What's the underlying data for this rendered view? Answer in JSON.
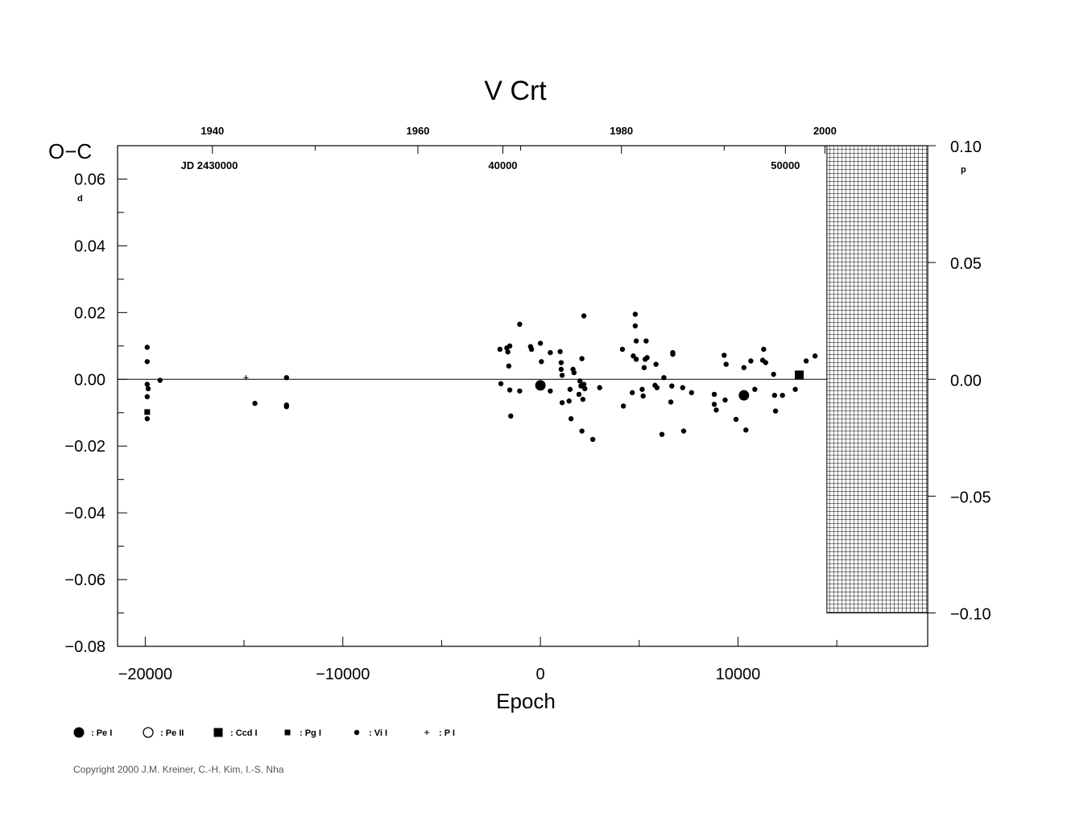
{
  "chart_data": {
    "type": "scatter",
    "title": "V  Crt",
    "ylabel": "O−C",
    "xlabel": "Epoch",
    "y_unit": "d",
    "y2_unit": "p",
    "xlim": [
      -21400,
      19600
    ],
    "ylim": [
      -0.08,
      0.07
    ],
    "x_ticks": [
      -20000,
      -10000,
      0,
      10000
    ],
    "x_tick_labels": [
      "−20000",
      "−10000",
      "0",
      "10000"
    ],
    "y_ticks": [
      0.06,
      0.04,
      0.02,
      0.0,
      -0.02,
      -0.04,
      -0.06,
      -0.08
    ],
    "y_tick_labels": [
      "0.06",
      "0.04",
      "0.02",
      "0.00",
      "−0.02",
      "−0.04",
      "−0.06",
      "−0.08"
    ],
    "y2_ticks": [
      0.1,
      0.05,
      0.0,
      -0.05,
      -0.1
    ],
    "y2_tick_labels": [
      "0.10",
      "0.05",
      "0.00",
      "−0.05",
      "−0.10"
    ],
    "top_year_labels": [
      "1940",
      "1960",
      "1980",
      "2000"
    ],
    "top_year_positions": [
      -16600,
      -6200,
      4100,
      14400
    ],
    "jd_labels": [
      "JD  2430000",
      "40000",
      "50000"
    ],
    "jd_positions": [
      -18200,
      -1900,
      12400
    ],
    "legend": [
      {
        "symbol": "big-dot",
        "label": ": Pe  I"
      },
      {
        "symbol": "open-circle",
        "label": ": Pe  II"
      },
      {
        "symbol": "big-square",
        "label": ": Ccd  I"
      },
      {
        "symbol": "small-square",
        "label": ": Pg  I"
      },
      {
        "symbol": "small-dot",
        "label": ": Vi  I"
      },
      {
        "symbol": "plus",
        "label": ": P  I"
      }
    ],
    "series": [
      {
        "name": "Pe I",
        "marker": "big-dot",
        "points": [
          [
            0,
            -0.0018
          ],
          [
            10300,
            -0.0048
          ]
        ]
      },
      {
        "name": "Ccd I",
        "marker": "big-square",
        "points": [
          [
            13100,
            0.0013
          ]
        ]
      },
      {
        "name": "Pg I",
        "marker": "small-square",
        "points": [
          [
            -19900,
            -0.0098
          ]
        ]
      },
      {
        "name": "P I",
        "marker": "plus",
        "points": [
          [
            -14900,
            0.0005
          ]
        ]
      },
      {
        "name": "Vi I",
        "marker": "small-dot",
        "points": [
          [
            -19900,
            0.0096
          ],
          [
            -19900,
            0.0053
          ],
          [
            -19900,
            -0.0015
          ],
          [
            -19850,
            -0.0028
          ],
          [
            -19900,
            -0.0052
          ],
          [
            -19900,
            -0.0118
          ],
          [
            -19250,
            -0.0003
          ],
          [
            -14450,
            -0.0072
          ],
          [
            -12850,
            0.0005
          ],
          [
            -12850,
            -0.0077
          ],
          [
            -12850,
            -0.0082
          ],
          [
            -2050,
            0.009
          ],
          [
            -2000,
            -0.0013
          ],
          [
            -1700,
            0.0094
          ],
          [
            -1650,
            0.0082
          ],
          [
            -1600,
            0.004
          ],
          [
            -1550,
            0.01
          ],
          [
            -1550,
            -0.0032
          ],
          [
            -1500,
            -0.011
          ],
          [
            -1050,
            0.0165
          ],
          [
            -1050,
            -0.0035
          ],
          [
            -500,
            0.0098
          ],
          [
            -450,
            0.009
          ],
          [
            0,
            0.0108
          ],
          [
            50,
            0.0053
          ],
          [
            500,
            0.008
          ],
          [
            500,
            -0.0035
          ],
          [
            1000,
            0.0083
          ],
          [
            1050,
            0.005
          ],
          [
            1050,
            0.003
          ],
          [
            1100,
            0.0012
          ],
          [
            1100,
            -0.007
          ],
          [
            1450,
            -0.0065
          ],
          [
            1500,
            -0.003
          ],
          [
            1550,
            -0.0118
          ],
          [
            1650,
            0.003
          ],
          [
            1700,
            0.002
          ],
          [
            1950,
            -0.0045
          ],
          [
            2000,
            -0.0005
          ],
          [
            2050,
            -0.002
          ],
          [
            2100,
            0.0062
          ],
          [
            2100,
            -0.0155
          ],
          [
            2150,
            -0.006
          ],
          [
            2200,
            0.019
          ],
          [
            2200,
            -0.0015
          ],
          [
            2250,
            -0.0028
          ],
          [
            2650,
            -0.018
          ],
          [
            3000,
            -0.0025
          ],
          [
            4150,
            0.009
          ],
          [
            4200,
            -0.008
          ],
          [
            4650,
            -0.004
          ],
          [
            4700,
            0.007
          ],
          [
            4800,
            0.0195
          ],
          [
            4800,
            0.016
          ],
          [
            4850,
            0.0115
          ],
          [
            4850,
            0.006
          ],
          [
            5150,
            -0.003
          ],
          [
            5200,
            -0.005
          ],
          [
            5250,
            0.0035
          ],
          [
            5300,
            0.006
          ],
          [
            5350,
            0.0115
          ],
          [
            5400,
            0.0065
          ],
          [
            5800,
            -0.0018
          ],
          [
            5850,
            0.0045
          ],
          [
            5900,
            -0.0025
          ],
          [
            6150,
            -0.0165
          ],
          [
            6250,
            0.0005
          ],
          [
            6600,
            -0.0068
          ],
          [
            6650,
            -0.002
          ],
          [
            6700,
            0.0075
          ],
          [
            6700,
            0.008
          ],
          [
            7200,
            -0.0025
          ],
          [
            7250,
            -0.0155
          ],
          [
            7650,
            -0.004
          ],
          [
            8800,
            -0.0045
          ],
          [
            8800,
            -0.0075
          ],
          [
            8900,
            -0.0092
          ],
          [
            9300,
            0.0072
          ],
          [
            9350,
            -0.0062
          ],
          [
            9400,
            0.0045
          ],
          [
            9900,
            -0.012
          ],
          [
            10300,
            0.0035
          ],
          [
            10400,
            -0.0152
          ],
          [
            10650,
            0.0055
          ],
          [
            10850,
            -0.003
          ],
          [
            11250,
            0.0057
          ],
          [
            11300,
            0.009
          ],
          [
            11400,
            0.005
          ],
          [
            11800,
            0.0015
          ],
          [
            11850,
            -0.0048
          ],
          [
            11900,
            -0.0095
          ],
          [
            12250,
            -0.0048
          ],
          [
            12900,
            -0.003
          ],
          [
            13450,
            0.0055
          ],
          [
            13900,
            0.007
          ]
        ]
      }
    ],
    "grid": false,
    "hatched_region": {
      "x_from": 14500,
      "x_to": 19600,
      "y_from": 0.07,
      "y_to": -0.07
    }
  },
  "footer": {
    "copyright": "Copyright 2000 J.M. Kreiner, C.-H. Kim, I.-S. Nha"
  }
}
